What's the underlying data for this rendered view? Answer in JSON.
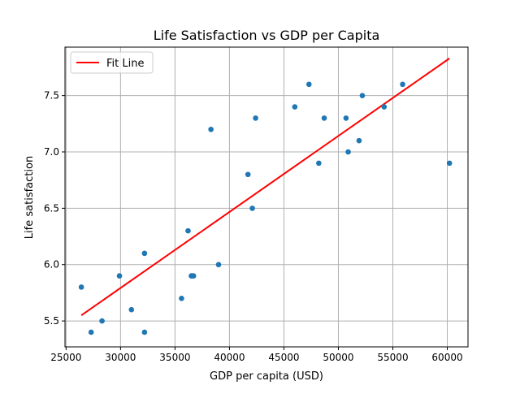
{
  "chart_data": {
    "type": "scatter",
    "title": "Life Satisfaction vs GDP per Capita",
    "xlabel": "GDP per capita (USD)",
    "ylabel": "Life satisfaction",
    "xlim": [
      24900,
      61900
    ],
    "ylim": [
      5.27,
      7.93
    ],
    "xticks": [
      25000,
      30000,
      35000,
      40000,
      45000,
      50000,
      55000,
      60000
    ],
    "yticks": [
      5.5,
      6.0,
      6.5,
      7.0,
      7.5
    ],
    "xtick_labels": [
      "25000",
      "30000",
      "35000",
      "40000",
      "45000",
      "50000",
      "55000",
      "60000"
    ],
    "ytick_labels": [
      "5.5",
      "6.0",
      "6.5",
      "7.0",
      "7.5"
    ],
    "grid": true,
    "legend_position": "top-left",
    "point_color": "#1f77b4",
    "fit_color": "#ff0000",
    "series": [
      {
        "type": "scatter",
        "points": [
          {
            "x": 26400,
            "y": 5.8
          },
          {
            "x": 27300,
            "y": 5.4
          },
          {
            "x": 28300,
            "y": 5.5
          },
          {
            "x": 29900,
            "y": 5.9
          },
          {
            "x": 31000,
            "y": 5.6
          },
          {
            "x": 32200,
            "y": 6.1
          },
          {
            "x": 32200,
            "y": 5.4
          },
          {
            "x": 35600,
            "y": 5.7
          },
          {
            "x": 36200,
            "y": 6.3
          },
          {
            "x": 36500,
            "y": 5.9
          },
          {
            "x": 36700,
            "y": 5.9
          },
          {
            "x": 38300,
            "y": 7.2
          },
          {
            "x": 39000,
            "y": 6.0
          },
          {
            "x": 41700,
            "y": 6.8
          },
          {
            "x": 42100,
            "y": 6.5
          },
          {
            "x": 42400,
            "y": 7.3
          },
          {
            "x": 46000,
            "y": 7.4
          },
          {
            "x": 47300,
            "y": 7.6
          },
          {
            "x": 48200,
            "y": 6.9
          },
          {
            "x": 48700,
            "y": 7.3
          },
          {
            "x": 50700,
            "y": 7.3
          },
          {
            "x": 50900,
            "y": 7.0
          },
          {
            "x": 51900,
            "y": 7.1
          },
          {
            "x": 52200,
            "y": 7.5
          },
          {
            "x": 54200,
            "y": 7.4
          },
          {
            "x": 55900,
            "y": 7.6
          },
          {
            "x": 60200,
            "y": 6.9
          }
        ]
      },
      {
        "name": "Fit Line",
        "type": "line",
        "points": [
          {
            "x": 26400,
            "y": 5.55
          },
          {
            "x": 60200,
            "y": 7.83
          }
        ]
      }
    ]
  }
}
